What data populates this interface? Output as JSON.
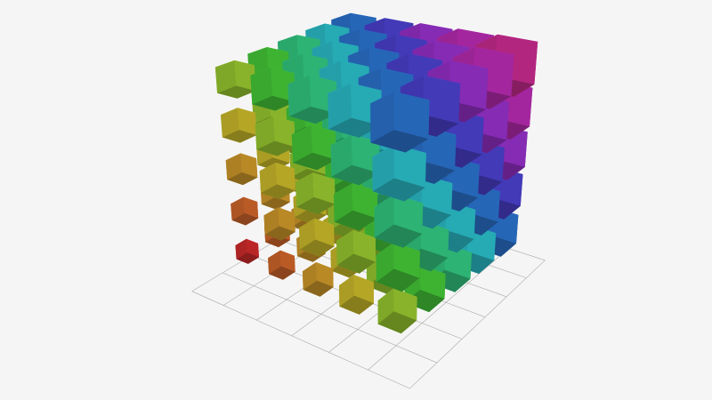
{
  "chart_data": {
    "type": "scatter3D",
    "symbol": "cube",
    "title": "",
    "xlabel": "",
    "ylabel": "",
    "zlabel": "",
    "grid3D": true,
    "axis_labels_visible": false,
    "background": "#f5f5f5",
    "grid_color": "#aaaaaa",
    "visual_map": {
      "dimension": "value",
      "range": [
        0,
        12
      ],
      "colors": [
        "#e83030",
        "#e8a030",
        "#e0e030",
        "#40e040",
        "#30e0e0",
        "#3050e8",
        "#c030e0",
        "#e030a0"
      ],
      "size_range": [
        0.35,
        0.95
      ]
    },
    "xlim": [
      0,
      4
    ],
    "ylim": [
      0,
      4
    ],
    "zlim": [
      0,
      4
    ],
    "points": [
      [
        0,
        0,
        0,
        0
      ],
      [
        0,
        0,
        1,
        1
      ],
      [
        0,
        0,
        2,
        2
      ],
      [
        0,
        0,
        3,
        3
      ],
      [
        0,
        0,
        4,
        4
      ],
      [
        0,
        1,
        0,
        1
      ],
      [
        0,
        1,
        1,
        2
      ],
      [
        0,
        1,
        2,
        3
      ],
      [
        0,
        1,
        3,
        4
      ],
      [
        0,
        1,
        4,
        5
      ],
      [
        0,
        2,
        0,
        2
      ],
      [
        0,
        2,
        1,
        3
      ],
      [
        0,
        2,
        2,
        4
      ],
      [
        0,
        2,
        3,
        5
      ],
      [
        0,
        2,
        4,
        6
      ],
      [
        0,
        3,
        0,
        3
      ],
      [
        0,
        3,
        1,
        4
      ],
      [
        0,
        3,
        2,
        5
      ],
      [
        0,
        3,
        3,
        6
      ],
      [
        0,
        3,
        4,
        7
      ],
      [
        0,
        4,
        0,
        4
      ],
      [
        0,
        4,
        1,
        5
      ],
      [
        0,
        4,
        2,
        6
      ],
      [
        0,
        4,
        3,
        7
      ],
      [
        0,
        4,
        4,
        8
      ],
      [
        1,
        0,
        0,
        1
      ],
      [
        1,
        0,
        1,
        2
      ],
      [
        1,
        0,
        2,
        3
      ],
      [
        1,
        0,
        3,
        4
      ],
      [
        1,
        0,
        4,
        5
      ],
      [
        1,
        1,
        0,
        2
      ],
      [
        1,
        1,
        1,
        3
      ],
      [
        1,
        1,
        2,
        4
      ],
      [
        1,
        1,
        3,
        5
      ],
      [
        1,
        1,
        4,
        6
      ],
      [
        1,
        2,
        0,
        3
      ],
      [
        1,
        2,
        1,
        4
      ],
      [
        1,
        2,
        2,
        5
      ],
      [
        1,
        2,
        3,
        6
      ],
      [
        1,
        2,
        4,
        7
      ],
      [
        1,
        3,
        0,
        4
      ],
      [
        1,
        3,
        1,
        5
      ],
      [
        1,
        3,
        2,
        6
      ],
      [
        1,
        3,
        3,
        7
      ],
      [
        1,
        3,
        4,
        8
      ],
      [
        1,
        4,
        0,
        5
      ],
      [
        1,
        4,
        1,
        6
      ],
      [
        1,
        4,
        2,
        7
      ],
      [
        1,
        4,
        3,
        8
      ],
      [
        1,
        4,
        4,
        9
      ],
      [
        2,
        0,
        0,
        2
      ],
      [
        2,
        0,
        1,
        3
      ],
      [
        2,
        0,
        2,
        4
      ],
      [
        2,
        0,
        3,
        5
      ],
      [
        2,
        0,
        4,
        6
      ],
      [
        2,
        1,
        0,
        3
      ],
      [
        2,
        1,
        1,
        4
      ],
      [
        2,
        1,
        2,
        5
      ],
      [
        2,
        1,
        3,
        6
      ],
      [
        2,
        1,
        4,
        7
      ],
      [
        2,
        2,
        0,
        4
      ],
      [
        2,
        2,
        1,
        5
      ],
      [
        2,
        2,
        2,
        6
      ],
      [
        2,
        2,
        3,
        7
      ],
      [
        2,
        2,
        4,
        8
      ],
      [
        2,
        3,
        0,
        5
      ],
      [
        2,
        3,
        1,
        6
      ],
      [
        2,
        3,
        2,
        7
      ],
      [
        2,
        3,
        3,
        8
      ],
      [
        2,
        3,
        4,
        9
      ],
      [
        2,
        4,
        0,
        6
      ],
      [
        2,
        4,
        1,
        7
      ],
      [
        2,
        4,
        2,
        8
      ],
      [
        2,
        4,
        3,
        9
      ],
      [
        2,
        4,
        4,
        10
      ],
      [
        3,
        0,
        0,
        3
      ],
      [
        3,
        0,
        1,
        4
      ],
      [
        3,
        0,
        2,
        5
      ],
      [
        3,
        0,
        3,
        6
      ],
      [
        3,
        0,
        4,
        7
      ],
      [
        3,
        1,
        0,
        4
      ],
      [
        3,
        1,
        1,
        5
      ],
      [
        3,
        1,
        2,
        6
      ],
      [
        3,
        1,
        3,
        7
      ],
      [
        3,
        1,
        4,
        8
      ],
      [
        3,
        2,
        0,
        5
      ],
      [
        3,
        2,
        1,
        6
      ],
      [
        3,
        2,
        2,
        7
      ],
      [
        3,
        2,
        3,
        8
      ],
      [
        3,
        2,
        4,
        9
      ],
      [
        3,
        3,
        0,
        6
      ],
      [
        3,
        3,
        1,
        7
      ],
      [
        3,
        3,
        2,
        8
      ],
      [
        3,
        3,
        3,
        9
      ],
      [
        3,
        3,
        4,
        10
      ],
      [
        3,
        4,
        0,
        7
      ],
      [
        3,
        4,
        1,
        8
      ],
      [
        3,
        4,
        2,
        9
      ],
      [
        3,
        4,
        3,
        10
      ],
      [
        3,
        4,
        4,
        11
      ],
      [
        4,
        0,
        0,
        4
      ],
      [
        4,
        0,
        1,
        5
      ],
      [
        4,
        0,
        2,
        6
      ],
      [
        4,
        0,
        3,
        7
      ],
      [
        4,
        0,
        4,
        8
      ],
      [
        4,
        1,
        0,
        5
      ],
      [
        4,
        1,
        1,
        6
      ],
      [
        4,
        1,
        2,
        7
      ],
      [
        4,
        1,
        3,
        8
      ],
      [
        4,
        1,
        4,
        9
      ],
      [
        4,
        2,
        0,
        6
      ],
      [
        4,
        2,
        1,
        7
      ],
      [
        4,
        2,
        2,
        8
      ],
      [
        4,
        2,
        3,
        9
      ],
      [
        4,
        2,
        4,
        10
      ],
      [
        4,
        3,
        0,
        7
      ],
      [
        4,
        3,
        1,
        8
      ],
      [
        4,
        3,
        2,
        9
      ],
      [
        4,
        3,
        3,
        10
      ],
      [
        4,
        3,
        4,
        11
      ],
      [
        4,
        4,
        0,
        8
      ],
      [
        4,
        4,
        1,
        9
      ],
      [
        4,
        4,
        2,
        10
      ],
      [
        4,
        4,
        3,
        11
      ],
      [
        4,
        4,
        4,
        12
      ]
    ]
  }
}
